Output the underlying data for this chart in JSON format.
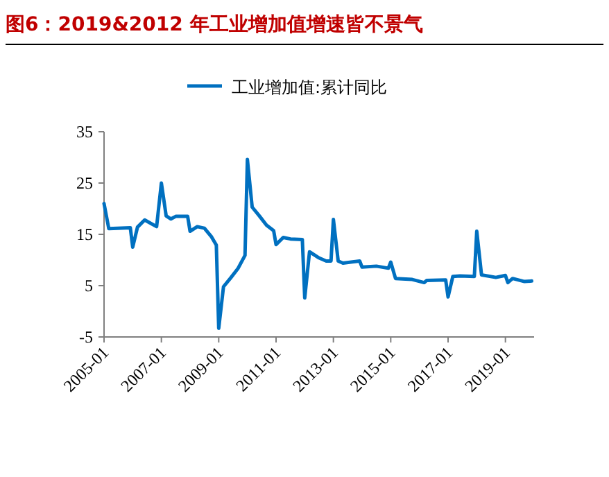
{
  "chart_data": {
    "type": "line",
    "title": "图6：2019&2012 年工业增加值增速皆不景气",
    "x": [
      "2005-01",
      "2005-03",
      "2005-12",
      "2006-01",
      "2006-03",
      "2006-06",
      "2006-11",
      "2007-01",
      "2007-03",
      "2007-05",
      "2007-07",
      "2007-12",
      "2008-01",
      "2008-04",
      "2008-07",
      "2008-10",
      "2008-12",
      "2009-01",
      "2009-03",
      "2009-06",
      "2009-09",
      "2009-12",
      "2010-01",
      "2010-03",
      "2010-06",
      "2010-09",
      "2010-12",
      "2011-01",
      "2011-04",
      "2011-07",
      "2011-12",
      "2012-01",
      "2012-03",
      "2012-07",
      "2012-10",
      "2012-12",
      "2013-01",
      "2013-03",
      "2013-05",
      "2013-12",
      "2014-01",
      "2014-07",
      "2014-12",
      "2015-01",
      "2015-03",
      "2015-10",
      "2016-03",
      "2016-04",
      "2016-12",
      "2017-01",
      "2017-03",
      "2017-06",
      "2017-12",
      "2018-01",
      "2018-03",
      "2018-09",
      "2019-01",
      "2019-02",
      "2019-04",
      "2019-09",
      "2019-12"
    ],
    "series": [
      {
        "name": "工业增加值:累计同比",
        "color": "#0070c0",
        "values": [
          21,
          16.1,
          16.3,
          12.5,
          16.4,
          17.8,
          16.5,
          25,
          18.6,
          18,
          18.5,
          18.5,
          15.6,
          16.5,
          16.2,
          14.5,
          12.9,
          -3.3,
          4.8,
          6.5,
          8.3,
          10.9,
          29.6,
          20.3,
          18.6,
          16.8,
          15.7,
          13,
          14.4,
          14.1,
          14,
          2.6,
          11.6,
          10.4,
          9.8,
          9.8,
          17.9,
          9.8,
          9.4,
          9.8,
          8.6,
          8.8,
          8.4,
          9.6,
          6.4,
          6.2,
          5.6,
          6,
          6.1,
          2.8,
          6.8,
          6.9,
          6.8,
          15.6,
          7.1,
          6.6,
          7,
          5.6,
          6.4,
          5.8,
          5.9
        ]
      }
    ],
    "xlim": [
      "2005-01",
      "2020-01"
    ],
    "xticks": [
      {
        "value": "2005-01",
        "label": "2005-01"
      },
      {
        "value": "2007-01",
        "label": "2007-01"
      },
      {
        "value": "2009-01",
        "label": "2009-01"
      },
      {
        "value": "2011-01",
        "label": "2011-01"
      },
      {
        "value": "2013-01",
        "label": "2013-01"
      },
      {
        "value": "2015-01",
        "label": "2015-01"
      },
      {
        "value": "2017-01",
        "label": "2017-01"
      },
      {
        "value": "2019-01",
        "label": "2019-01"
      }
    ],
    "ylim": [
      -5,
      35
    ],
    "yticks": [
      -5,
      5,
      15,
      25,
      35
    ],
    "grid": false,
    "legend": "top",
    "line_style": "solid",
    "marker": "none"
  }
}
